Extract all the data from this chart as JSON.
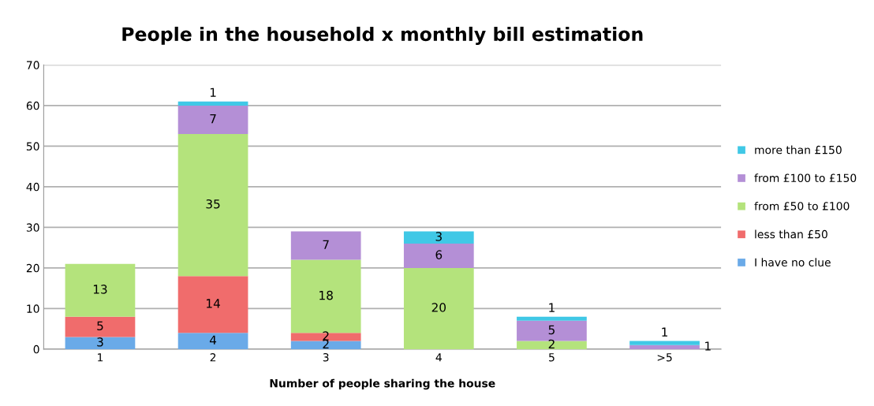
{
  "chart_data": {
    "type": "bar",
    "stacked": true,
    "title": "People in the household x monthly bill estimation",
    "xlabel": "Number of people sharing the house",
    "categories": [
      "1",
      "2",
      "3",
      "4",
      "5",
      ">5"
    ],
    "series": [
      {
        "name": "I have no clue",
        "color": "#6aaae8",
        "values": [
          3,
          4,
          2,
          null,
          null,
          null
        ]
      },
      {
        "name": "less than £50",
        "color": "#f06c6c",
        "values": [
          5,
          14,
          2,
          null,
          null,
          null
        ]
      },
      {
        "name": "from £50 to £100",
        "color": "#b4e37c",
        "values": [
          13,
          35,
          18,
          20,
          2,
          null
        ]
      },
      {
        "name": "from £100 to £150",
        "color": "#b48fd6",
        "values": [
          null,
          7,
          7,
          6,
          5,
          1
        ]
      },
      {
        "name": "more than £150",
        "color": "#40c8e6",
        "values": [
          null,
          1,
          null,
          3,
          1,
          1
        ]
      }
    ],
    "ylim": [
      0,
      70
    ],
    "yticks": [
      0,
      10,
      20,
      30,
      40,
      50,
      60,
      70
    ],
    "grid": "y",
    "legend": "right",
    "data_labels": true
  }
}
